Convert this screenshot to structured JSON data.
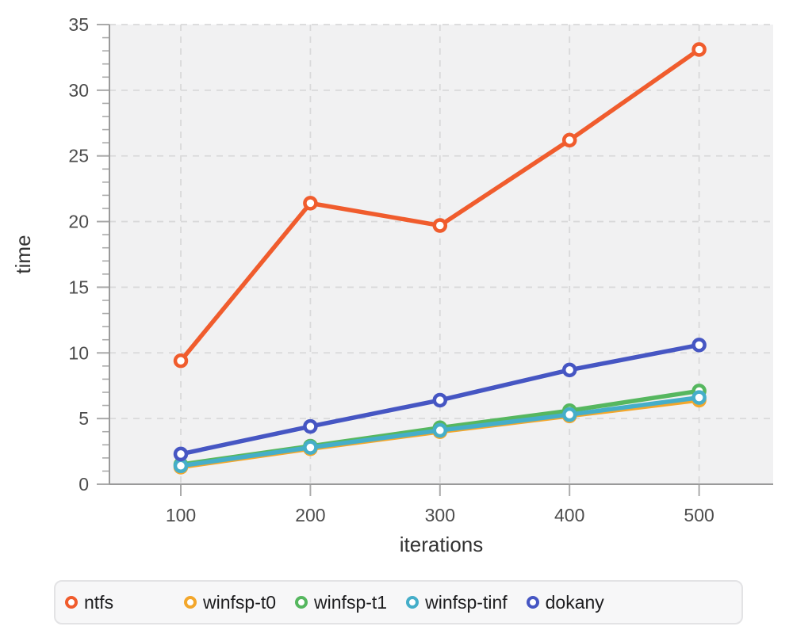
{
  "chart_data": {
    "type": "line",
    "x": [
      100,
      200,
      300,
      400,
      500
    ],
    "xticks": [
      100,
      200,
      300,
      400,
      500
    ],
    "yticks": [
      0,
      5,
      10,
      15,
      20,
      25,
      30,
      35
    ],
    "ylim": [
      0,
      35
    ],
    "xlabel": "iterations",
    "ylabel": "time",
    "grid": true,
    "legend_position": "bottom",
    "series": [
      {
        "name": "ntfs",
        "color": "#f05c2d",
        "values": [
          9.4,
          21.4,
          19.7,
          26.2,
          33.1
        ]
      },
      {
        "name": "winfsp-t0",
        "color": "#f3a72c",
        "values": [
          1.3,
          2.7,
          4.0,
          5.2,
          6.4
        ]
      },
      {
        "name": "winfsp-t1",
        "color": "#56b75f",
        "values": [
          1.5,
          2.9,
          4.3,
          5.6,
          7.1
        ]
      },
      {
        "name": "winfsp-tinf",
        "color": "#45aec9",
        "values": [
          1.4,
          2.8,
          4.1,
          5.3,
          6.6
        ]
      },
      {
        "name": "dokany",
        "color": "#4656c3",
        "values": [
          2.3,
          4.4,
          6.4,
          8.7,
          10.6
        ]
      }
    ]
  },
  "style": {
    "plot_bg": "#f1f1f2",
    "grid_color": "#d9d9da",
    "spine_color": "#9a9a9a",
    "tick_color": "#aaaaaa",
    "tick_label_color": "#4d4d4d",
    "axis_title_color": "#333333",
    "marker_fill": "#ffffff"
  }
}
